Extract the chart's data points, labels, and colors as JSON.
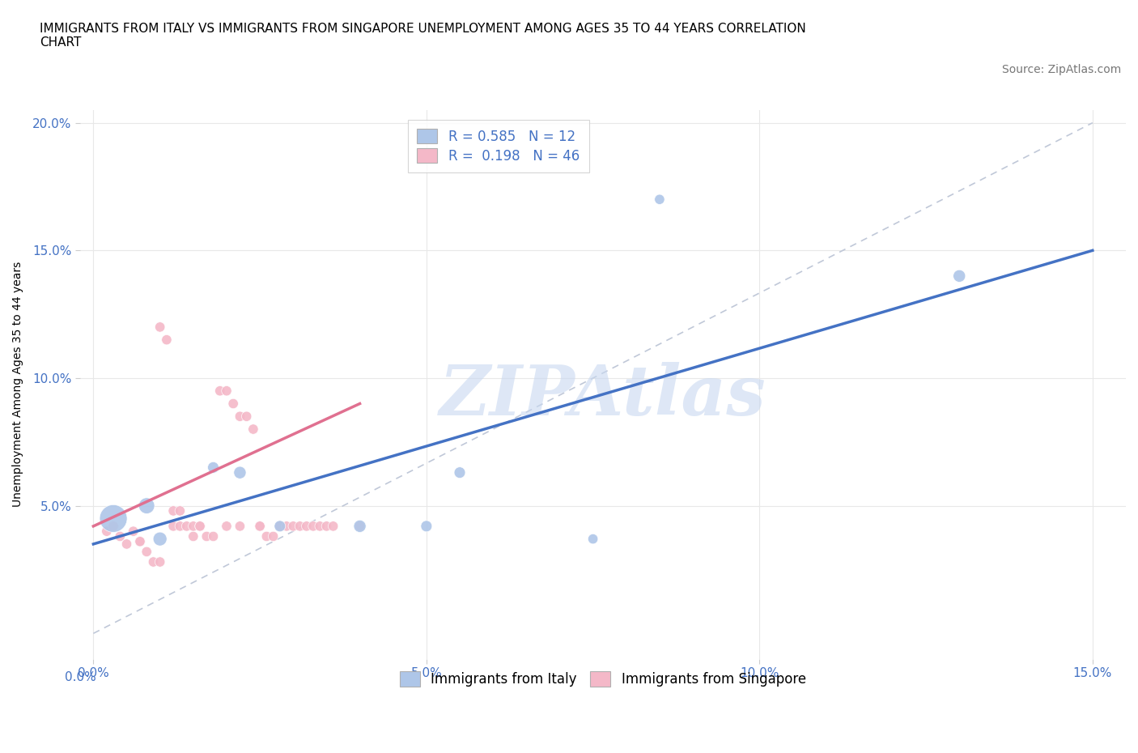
{
  "title": "IMMIGRANTS FROM ITALY VS IMMIGRANTS FROM SINGAPORE UNEMPLOYMENT AMONG AGES 35 TO 44 YEARS CORRELATION\nCHART",
  "source": "Source: ZipAtlas.com",
  "ylabel": "Unemployment Among Ages 35 to 44 years",
  "xlim": [
    -0.002,
    0.155
  ],
  "ylim": [
    -0.01,
    0.205
  ],
  "xticks": [
    0.0,
    0.05,
    0.1,
    0.15
  ],
  "yticks": [
    0.05,
    0.1,
    0.15,
    0.2
  ],
  "italy_color": "#aec6e8",
  "singapore_color": "#f4b8c8",
  "italy_R": 0.585,
  "italy_N": 12,
  "singapore_R": 0.198,
  "singapore_N": 46,
  "italy_scatter_x": [
    0.003,
    0.008,
    0.01,
    0.018,
    0.022,
    0.028,
    0.04,
    0.05,
    0.055,
    0.075,
    0.085,
    0.13
  ],
  "italy_scatter_y": [
    0.045,
    0.05,
    0.037,
    0.065,
    0.063,
    0.042,
    0.042,
    0.042,
    0.063,
    0.037,
    0.17,
    0.14
  ],
  "italy_scatter_size": [
    600,
    200,
    150,
    100,
    120,
    100,
    120,
    100,
    100,
    80,
    80,
    120
  ],
  "singapore_scatter_x": [
    0.002,
    0.003,
    0.004,
    0.005,
    0.006,
    0.007,
    0.007,
    0.008,
    0.009,
    0.01,
    0.01,
    0.011,
    0.012,
    0.012,
    0.013,
    0.013,
    0.014,
    0.015,
    0.015,
    0.016,
    0.016,
    0.017,
    0.018,
    0.019,
    0.02,
    0.02,
    0.021,
    0.022,
    0.022,
    0.023,
    0.024,
    0.025,
    0.025,
    0.026,
    0.027,
    0.028,
    0.028,
    0.029,
    0.03,
    0.031,
    0.032,
    0.033,
    0.034,
    0.035,
    0.036,
    0.04
  ],
  "singapore_scatter_y": [
    0.04,
    0.042,
    0.038,
    0.035,
    0.04,
    0.036,
    0.036,
    0.032,
    0.028,
    0.028,
    0.12,
    0.115,
    0.048,
    0.042,
    0.042,
    0.048,
    0.042,
    0.038,
    0.042,
    0.042,
    0.042,
    0.038,
    0.038,
    0.095,
    0.095,
    0.042,
    0.09,
    0.085,
    0.042,
    0.085,
    0.08,
    0.042,
    0.042,
    0.038,
    0.038,
    0.042,
    0.042,
    0.042,
    0.042,
    0.042,
    0.042,
    0.042,
    0.042,
    0.042,
    0.042,
    0.042
  ],
  "singapore_scatter_size": [
    80,
    80,
    80,
    80,
    80,
    80,
    80,
    80,
    80,
    80,
    80,
    80,
    80,
    80,
    80,
    80,
    80,
    80,
    80,
    80,
    80,
    80,
    80,
    80,
    80,
    80,
    80,
    80,
    80,
    80,
    80,
    80,
    80,
    80,
    80,
    80,
    80,
    80,
    80,
    80,
    80,
    80,
    80,
    80,
    80,
    80
  ],
  "italy_line_x": [
    0.0,
    0.15
  ],
  "italy_line_y": [
    0.035,
    0.15
  ],
  "singapore_line_x": [
    0.0,
    0.04
  ],
  "singapore_line_y": [
    0.042,
    0.09
  ],
  "diag_line_x": [
    0.0,
    0.15
  ],
  "diag_line_y": [
    0.0,
    0.2
  ],
  "watermark": "ZIPAtlas",
  "watermark_color": "#c8d8f0",
  "background_color": "#ffffff",
  "grid_color": "#e8e8e8",
  "title_fontsize": 11,
  "axis_label_fontsize": 10,
  "tick_fontsize": 11,
  "legend_fontsize": 12,
  "source_fontsize": 10,
  "blue_color": "#4472c4",
  "pink_color": "#e07090"
}
